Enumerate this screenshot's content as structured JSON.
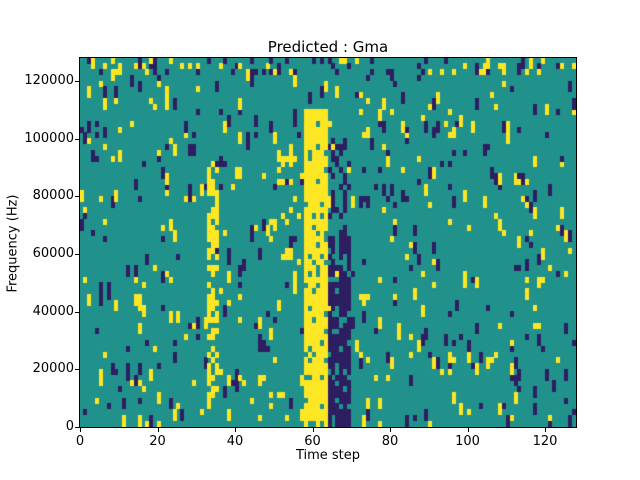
{
  "chart_data": {
    "type": "heatmap",
    "title": "Predicted : Gma",
    "xlabel": "Time step",
    "ylabel": "Frequency (Hz)",
    "xlim": [
      0,
      128
    ],
    "ylim": [
      0,
      128000
    ],
    "x_ticks": [
      0,
      20,
      40,
      60,
      80,
      100,
      120
    ],
    "y_ticks": [
      0,
      20000,
      40000,
      60000,
      80000,
      100000,
      120000
    ],
    "grid": {
      "cols": 128,
      "rows": 64,
      "seed": 1337
    },
    "classes": {
      "mid": "#21918c",
      "high": "#fde725",
      "low": "#2d1e62"
    },
    "background_class": "mid",
    "noise": {
      "high_prob": 0.034,
      "low_prob": 0.032,
      "run_extend_prob": 0.45
    },
    "features": [
      {
        "x0": 58,
        "x1": 64,
        "y0": 0,
        "y1": 110000,
        "class": "high",
        "density": 0.82,
        "note": "bright yellow vertical band near t=60"
      },
      {
        "x0": 64,
        "x1": 70,
        "y0": 0,
        "y1": 68000,
        "class": "low",
        "density": 0.75,
        "note": "dark vertical band near t=67"
      },
      {
        "x0": 64,
        "x1": 70,
        "y0": 68000,
        "y1": 100000,
        "class": "low",
        "density": 0.25,
        "note": "sparse dark cells above dark band"
      },
      {
        "x0": 33,
        "x1": 36,
        "y0": 8000,
        "y1": 92000,
        "class": "high",
        "density": 0.55,
        "note": "yellow streak near t=34"
      },
      {
        "x0": 49,
        "x1": 57,
        "y0": 55000,
        "y1": 95000,
        "class": "high",
        "density": 0.15,
        "note": "loose yellow cluster left of main band"
      },
      {
        "x0": 0,
        "x1": 128,
        "y0": 122000,
        "y1": 128000,
        "class": "high",
        "density": 0.1,
        "note": "extra speckle along top edge"
      },
      {
        "x0": 0,
        "x1": 128,
        "y0": 122000,
        "y1": 128000,
        "class": "low",
        "density": 0.1,
        "note": "extra speckle along top edge"
      }
    ],
    "legend": "none",
    "grid_lines": "off"
  }
}
